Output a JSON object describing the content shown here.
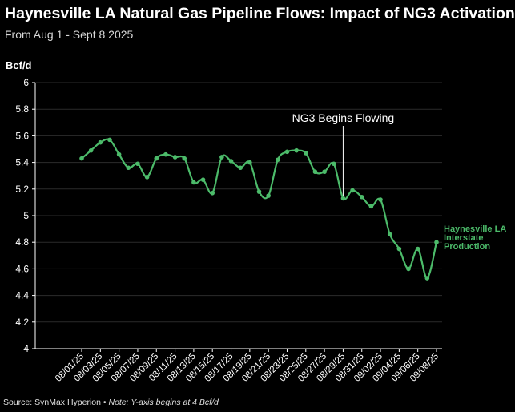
{
  "header": {
    "title": "Haynesville LA Natural Gas Pipeline Flows: Impact of NG3 Activation",
    "subtitle": "From Aug 1 - Sept 8 2025"
  },
  "footer": {
    "source": "Source: SynMax Hyperion",
    "separator": " • ",
    "note": "Note: Y-axis begins at 4 Bcf/d"
  },
  "colors": {
    "series": "#4cbb6a",
    "axis": "#ffffff",
    "grid": "#2b2b2b",
    "text": "#ffffff"
  },
  "chart_data": {
    "type": "line",
    "title": "Haynesville LA Natural Gas Pipeline Flows: Impact of NG3 Activation",
    "ylabel": "Bcf/d",
    "xlabel": "",
    "ylim": [
      4,
      6
    ],
    "yticks": [
      "4",
      "4.2",
      "4.4",
      "4.6",
      "4.8",
      "5",
      "5.2",
      "5.4",
      "5.6",
      "5.8",
      "6"
    ],
    "xtick_labels": [
      "08/01/25",
      "08/03/25",
      "08/05/25",
      "08/07/25",
      "08/09/25",
      "08/11/25",
      "08/13/25",
      "08/15/25",
      "08/17/25",
      "08/19/25",
      "08/21/25",
      "08/23/25",
      "08/25/25",
      "08/27/25",
      "08/29/25",
      "08/31/25",
      "09/02/25",
      "09/04/25",
      "09/06/25",
      "09/08/25"
    ],
    "x": [
      "08/01",
      "08/02",
      "08/03",
      "08/04",
      "08/05",
      "08/06",
      "08/07",
      "08/08",
      "08/09",
      "08/10",
      "08/11",
      "08/12",
      "08/13",
      "08/14",
      "08/15",
      "08/16",
      "08/17",
      "08/18",
      "08/19",
      "08/20",
      "08/21",
      "08/22",
      "08/23",
      "08/24",
      "08/25",
      "08/26",
      "08/27",
      "08/28",
      "08/29",
      "08/30",
      "08/31",
      "09/01",
      "09/02",
      "09/03",
      "09/04",
      "09/05",
      "09/06",
      "09/07",
      "09/08"
    ],
    "series": [
      {
        "name": "Haynesville LA Interstate Production",
        "label_lines": [
          "Haynesville LA",
          "Interstate",
          "Production"
        ],
        "values": [
          5.43,
          5.49,
          5.55,
          5.57,
          5.46,
          5.36,
          5.39,
          5.29,
          5.43,
          5.46,
          5.44,
          5.43,
          5.25,
          5.27,
          5.17,
          5.44,
          5.41,
          5.36,
          5.4,
          5.18,
          5.15,
          5.42,
          5.48,
          5.49,
          5.47,
          5.33,
          5.33,
          5.39,
          5.13,
          5.19,
          5.14,
          5.07,
          5.12,
          4.86,
          4.75,
          4.6,
          4.75,
          4.53,
          4.8
        ]
      }
    ],
    "annotations": [
      {
        "text": "NG3 Begins Flowing",
        "x": "08/29"
      }
    ]
  }
}
